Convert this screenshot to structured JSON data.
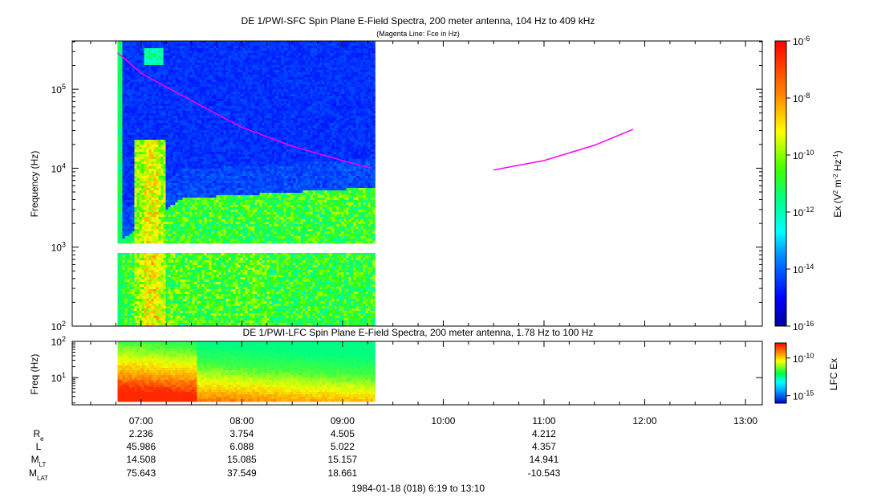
{
  "top_panel": {
    "title": "DE 1/PWI-SFC  Spin Plane E-Field Spectra, 200 meter antenna, 104 Hz to 409 kHz",
    "subtitle": "(Magenta Line: Fce in Hz)",
    "ylabel": "Frequency (Hz)",
    "yticks": [
      {
        "base": "10",
        "exp": "2"
      },
      {
        "base": "10",
        "exp": "3"
      },
      {
        "base": "10",
        "exp": "4"
      },
      {
        "base": "10",
        "exp": "5"
      }
    ],
    "colorbar_label": "Ex (V",
    "colorbar_label_exp1": "2",
    "colorbar_label_mid": " m",
    "colorbar_label_exp2": "-2",
    "colorbar_label_mid2": " Hz",
    "colorbar_label_exp3": "-1",
    "colorbar_label_end": ")",
    "colorbar_ticks": [
      {
        "base": "10",
        "exp": "-6"
      },
      {
        "base": "10",
        "exp": "-8"
      },
      {
        "base": "10",
        "exp": "-10"
      },
      {
        "base": "10",
        "exp": "-12"
      },
      {
        "base": "10",
        "exp": "-14"
      },
      {
        "base": "10",
        "exp": "-16"
      }
    ]
  },
  "bottom_panel": {
    "title": "DE 1/PWI-LFC  Spin Plane E-Field Spectra, 200 meter antenna, 1.78 Hz to 100 Hz",
    "ylabel": "Freq (Hz)",
    "yticks": [
      {
        "base": "10",
        "exp": "1"
      },
      {
        "base": "10",
        "exp": "2"
      }
    ],
    "colorbar_label": "LFC Ex",
    "colorbar_ticks": [
      {
        "base": "10",
        "exp": "-10"
      },
      {
        "base": "10",
        "exp": "-15"
      }
    ]
  },
  "ephemeris": {
    "labels": [
      {
        "base": "R",
        "sub": "e"
      },
      {
        "base": "L",
        "sub": ""
      },
      {
        "base": "M",
        "sub": "LT"
      },
      {
        "base": "M",
        "sub": "LAT"
      }
    ],
    "columns": [
      {
        "time": "07:00",
        "values": [
          "2.236",
          "45.986",
          "14.508",
          "75.643"
        ]
      },
      {
        "time": "08:00",
        "values": [
          "3.754",
          "6.088",
          "15.085",
          "37.549"
        ]
      },
      {
        "time": "09:00",
        "values": [
          "4.505",
          "5.022",
          "15.157",
          "18.661"
        ]
      },
      {
        "time": "11:00",
        "values": [
          "4.212",
          "4.357",
          "14.941",
          "-10.543"
        ]
      }
    ]
  },
  "footer": "1984-01-18 (018) 6:19 to 13:10",
  "chart_data": {
    "type": "heatmap",
    "x_axis": {
      "start": "06:19",
      "end": "13:10",
      "tick_labels": [
        "07:00",
        "08:00",
        "09:00",
        "10:00",
        "11:00",
        "12:00",
        "13:00"
      ]
    },
    "data_coverage": {
      "start": "06:46",
      "end": "09:19"
    },
    "sfc": {
      "yscale": "log",
      "ylim": [
        100,
        409000
      ],
      "color_range": [
        1e-16,
        1e-06
      ],
      "gap_band_hz": [
        900,
        1050
      ]
    },
    "lfc": {
      "yscale": "log",
      "ylim": [
        1.78,
        100
      ],
      "color_range": [
        1e-16,
        1e-08
      ]
    },
    "fce_line": {
      "color": "#ff00ff",
      "segments": [
        {
          "time": [
            "06:46",
            "07:00",
            "07:30",
            "08:00",
            "08:30",
            "09:00",
            "09:17"
          ],
          "hz": [
            290000,
            160000,
            72000,
            33000,
            19000,
            12500,
            10000
          ]
        },
        {
          "time": [
            "10:30",
            "11:00",
            "11:30",
            "11:53"
          ],
          "hz": [
            9500,
            12500,
            19500,
            31000
          ]
        }
      ]
    }
  }
}
